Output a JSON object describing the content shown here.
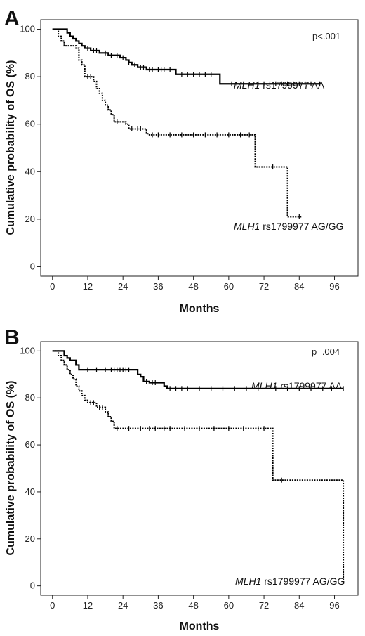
{
  "chart_data": [
    {
      "panel": "A",
      "type": "line",
      "xlabel": "Months",
      "ylabel": "Cumulative probability of OS (%)",
      "xticks": [
        0,
        12,
        24,
        36,
        48,
        60,
        72,
        84,
        96
      ],
      "yticks": [
        0,
        20,
        40,
        60,
        80,
        100
      ],
      "xlim": [
        -4,
        104
      ],
      "ylim": [
        -4,
        104
      ],
      "p_value": "p<.001",
      "grid": false,
      "series": [
        {
          "label_italic": "MLH1",
          "label_rest": " rs1799977 AA",
          "style": "solid",
          "steps": [
            [
              0,
              100
            ],
            [
              2.5,
              100
            ],
            [
              5,
              98.5
            ],
            [
              6,
              97
            ],
            [
              7,
              96
            ],
            [
              8,
              95
            ],
            [
              9,
              94
            ],
            [
              10,
              93
            ],
            [
              11,
              92
            ],
            [
              13,
              91
            ],
            [
              16,
              90
            ],
            [
              19,
              89
            ],
            [
              23,
              88
            ],
            [
              25,
              87
            ],
            [
              26,
              86
            ],
            [
              27,
              85
            ],
            [
              29,
              84
            ],
            [
              32,
              83
            ],
            [
              42,
              81
            ],
            [
              56,
              81
            ],
            [
              57,
              77
            ],
            [
              91,
              77
            ]
          ],
          "censor_x": [
            12,
            14,
            15,
            18,
            20,
            22,
            24,
            26,
            28,
            30,
            31,
            33,
            34,
            36,
            37,
            38,
            40,
            44,
            46,
            48,
            50,
            52,
            54,
            61,
            65,
            70,
            72,
            74,
            76,
            78,
            80,
            82,
            84,
            86,
            88,
            91
          ]
        },
        {
          "label_italic": "MLH1",
          "label_rest": " rs1799977 AG/GG",
          "style": "dotted",
          "steps": [
            [
              0,
              100
            ],
            [
              2,
              97
            ],
            [
              3,
              95
            ],
            [
              4,
              93
            ],
            [
              8,
              92
            ],
            [
              9,
              87
            ],
            [
              10,
              85
            ],
            [
              11,
              80
            ],
            [
              14,
              78
            ],
            [
              15,
              75
            ],
            [
              16,
              73
            ],
            [
              17,
              70
            ],
            [
              18,
              68
            ],
            [
              19,
              66
            ],
            [
              20,
              64
            ],
            [
              21,
              61
            ],
            [
              25,
              60
            ],
            [
              26,
              58
            ],
            [
              31,
              58
            ],
            [
              32,
              56
            ],
            [
              33,
              55.5
            ],
            [
              68,
              55.5
            ],
            [
              69,
              42
            ],
            [
              79,
              42
            ],
            [
              80,
              21
            ],
            [
              85,
              21
            ]
          ],
          "censor_x": [
            12,
            13,
            22,
            27,
            29,
            30,
            34,
            36,
            40,
            44,
            48,
            52,
            56,
            60,
            64,
            67,
            75,
            84
          ]
        }
      ]
    },
    {
      "panel": "B",
      "type": "line",
      "xlabel": "Months",
      "ylabel": "Cumulative probability of OS (%)",
      "xticks": [
        0,
        12,
        24,
        36,
        48,
        60,
        72,
        84,
        96
      ],
      "yticks": [
        0,
        20,
        40,
        60,
        80,
        100
      ],
      "xlim": [
        -4,
        104
      ],
      "ylim": [
        -4,
        104
      ],
      "p_value": "p=.004",
      "grid": false,
      "series": [
        {
          "label_italic": "MLH1",
          "label_rest": " rs1799977 AA",
          "style": "solid",
          "steps": [
            [
              0,
              100
            ],
            [
              3,
              100
            ],
            [
              4,
              98
            ],
            [
              5,
              97
            ],
            [
              6,
              96
            ],
            [
              8,
              94
            ],
            [
              9,
              92
            ],
            [
              27,
              92
            ],
            [
              29,
              90
            ],
            [
              30,
              89
            ],
            [
              31,
              87
            ],
            [
              33,
              86.5
            ],
            [
              36,
              86.5
            ],
            [
              38,
              85
            ],
            [
              39,
              84
            ],
            [
              99,
              84
            ]
          ],
          "censor_x": [
            12,
            15,
            18,
            20,
            21,
            22,
            23,
            24,
            25,
            26,
            32,
            34,
            35,
            40,
            42,
            44,
            46,
            50,
            54,
            58,
            62,
            66,
            70,
            76,
            80,
            84,
            88,
            92,
            95,
            99
          ]
        },
        {
          "label_italic": "MLH1",
          "label_rest": " rs1799977 AG/GG",
          "style": "dotted",
          "steps": [
            [
              0,
              100
            ],
            [
              2,
              98
            ],
            [
              3,
              96
            ],
            [
              4,
              94
            ],
            [
              5,
              92
            ],
            [
              6,
              90
            ],
            [
              7,
              88
            ],
            [
              8,
              85
            ],
            [
              9,
              83
            ],
            [
              10,
              81
            ],
            [
              11,
              79
            ],
            [
              12,
              78
            ],
            [
              15,
              76
            ],
            [
              18,
              74
            ],
            [
              19,
              72
            ],
            [
              20,
              70
            ],
            [
              21,
              67
            ],
            [
              74,
              67
            ],
            [
              75,
              45
            ],
            [
              99,
              45
            ],
            [
              99,
              1
            ]
          ],
          "censor_x": [
            13,
            14,
            16,
            17,
            22,
            26,
            30,
            33,
            35,
            38,
            40,
            45,
            50,
            55,
            60,
            65,
            70,
            72,
            78
          ]
        }
      ]
    }
  ]
}
